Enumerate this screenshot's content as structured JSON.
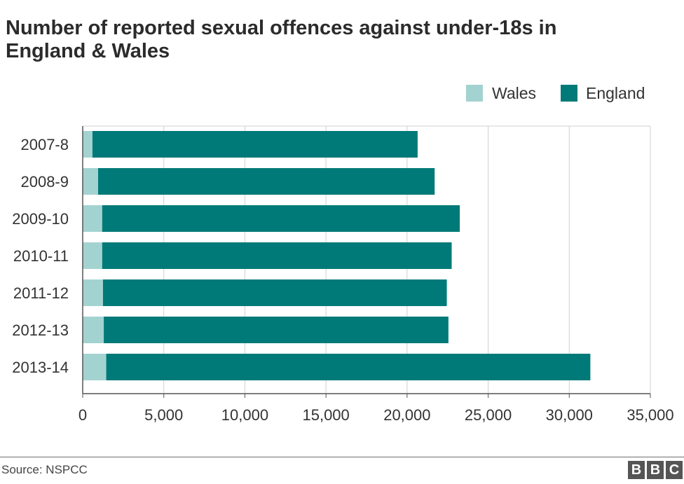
{
  "title_line1": "Number of reported sexual offences against under-18s in",
  "title_line2": "England & Wales",
  "source": "Source: NSPCC",
  "logo": [
    "B",
    "B",
    "C"
  ],
  "colors": {
    "wales": "#a3d3d1",
    "england": "#007a78",
    "grid": "#d0d0d0",
    "axis": "#555555"
  },
  "chart_data": {
    "type": "bar",
    "orientation": "horizontal",
    "stacked": true,
    "categories": [
      "2007-8",
      "2008-9",
      "2009-10",
      "2010-11",
      "2011-12",
      "2012-13",
      "2013-14"
    ],
    "series": [
      {
        "name": "Wales",
        "values": [
          600,
          950,
          1200,
          1200,
          1250,
          1300,
          1450
        ]
      },
      {
        "name": "England",
        "values": [
          20050,
          20750,
          22050,
          21550,
          21200,
          21250,
          29850
        ]
      }
    ],
    "totals": [
      20650,
      21700,
      23250,
      22750,
      22450,
      22550,
      31300
    ],
    "xlim": [
      0,
      35000
    ],
    "xticks": [
      0,
      5000,
      10000,
      15000,
      20000,
      25000,
      30000,
      35000
    ],
    "xtick_labels": [
      "0",
      "5,000",
      "10,000",
      "15,000",
      "20,000",
      "25,000",
      "30,000",
      "35,000"
    ],
    "title": "Number of reported sexual offences against under-18s in England & Wales",
    "xlabel": "",
    "ylabel": "",
    "grid": true,
    "legend": "top-right"
  }
}
